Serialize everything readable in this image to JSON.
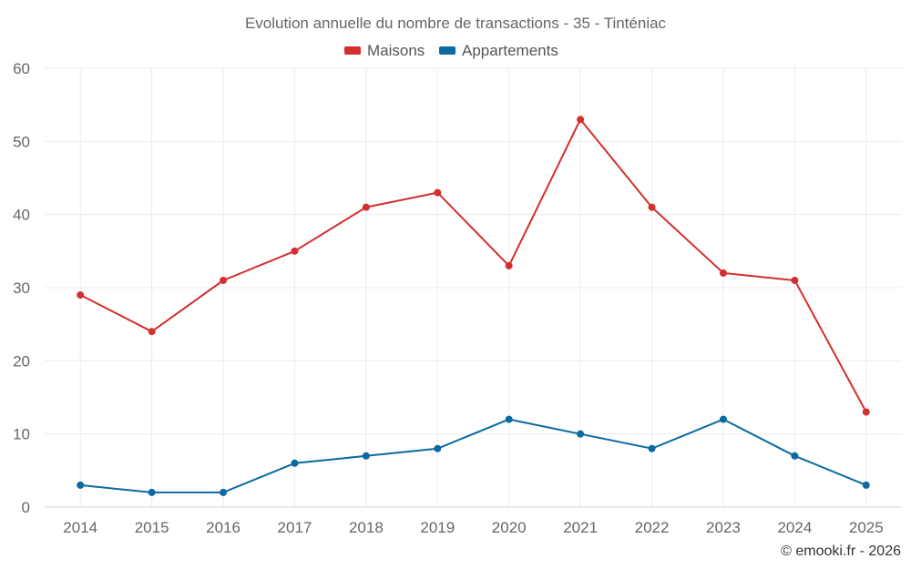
{
  "chart_data": {
    "type": "line",
    "title": "Evolution annuelle du nombre de transactions - 35 - Tinténiac",
    "categories": [
      "2014",
      "2015",
      "2016",
      "2017",
      "2018",
      "2019",
      "2020",
      "2021",
      "2022",
      "2023",
      "2024",
      "2025"
    ],
    "series": [
      {
        "name": "Maisons",
        "color": "#d32f2f",
        "values": [
          29,
          24,
          31,
          35,
          41,
          43,
          33,
          53,
          41,
          32,
          31,
          13
        ]
      },
      {
        "name": "Appartements",
        "color": "#0a6aa1",
        "values": [
          3,
          2,
          2,
          6,
          7,
          8,
          12,
          10,
          8,
          12,
          7,
          3
        ]
      }
    ],
    "ylim": [
      0,
      60
    ],
    "yticks": [
      0,
      10,
      20,
      30,
      40,
      50,
      60
    ],
    "grid": true,
    "legend_position": "top-center",
    "xlabel": "",
    "ylabel": ""
  },
  "credit": "© emooki.fr - 2026"
}
